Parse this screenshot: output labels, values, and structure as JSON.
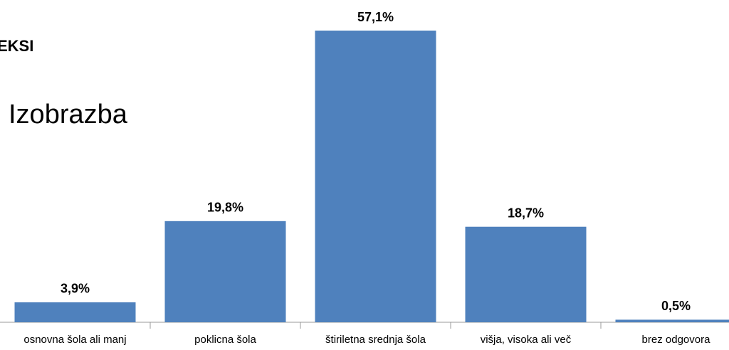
{
  "header": {
    "text": "EKSI"
  },
  "chart_data": {
    "type": "bar",
    "title": "Izobrazba",
    "categories": [
      "osnovna šola ali manj",
      "poklicna šola",
      "štiriletna srednja šola",
      "višja, visoka ali več",
      "brez odgovora"
    ],
    "values": [
      3.9,
      19.8,
      57.1,
      18.7,
      0.5
    ],
    "value_labels": [
      "3,9%",
      "19,8%",
      "57,1%",
      "18,7%",
      "0,5%"
    ],
    "color": "#4f81bd"
  }
}
